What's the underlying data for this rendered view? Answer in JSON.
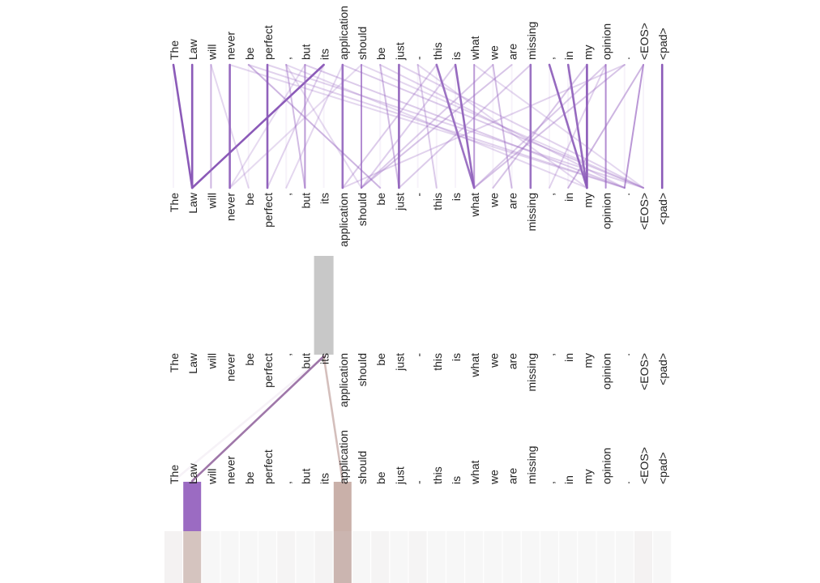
{
  "tokens": [
    "The",
    "Law",
    "will",
    "never",
    "be",
    "perfect",
    ",",
    "but",
    "its",
    "application",
    "should",
    "be",
    "just",
    "-",
    "this",
    "is",
    "what",
    "we",
    "are",
    "missing",
    ",",
    "in",
    "my",
    "opinion",
    ".",
    "<EOS>",
    "<pad>"
  ],
  "colors": {
    "attention": "#9c6bc4",
    "attention_strong": "#8b5ab8",
    "highlight_gray": "#c8c8c8",
    "highlight_purple": "#9b6bc2",
    "highlight_rose": "#c9b0a9",
    "line_purple_mauve": "#8e5f9a",
    "line_rose": "#b89590"
  },
  "overview": {
    "attention_links": [
      {
        "from": 0,
        "to": 1,
        "weight": 0.85
      },
      {
        "from": 1,
        "to": 1,
        "weight": 0.9
      },
      {
        "from": 8,
        "to": 1,
        "weight": 0.9
      },
      {
        "from": 2,
        "to": 2,
        "weight": 0.3
      },
      {
        "from": 3,
        "to": 3,
        "weight": 0.75
      },
      {
        "from": 4,
        "to": 11,
        "weight": 0.35
      },
      {
        "from": 5,
        "to": 5,
        "weight": 0.8
      },
      {
        "from": 7,
        "to": 7,
        "weight": 0.5
      },
      {
        "from": 6,
        "to": 7,
        "weight": 0.3
      },
      {
        "from": 9,
        "to": 9,
        "weight": 0.7
      },
      {
        "from": 10,
        "to": 10,
        "weight": 0.6
      },
      {
        "from": 11,
        "to": 12,
        "weight": 0.3
      },
      {
        "from": 12,
        "to": 12,
        "weight": 0.75
      },
      {
        "from": 14,
        "to": 16,
        "weight": 0.7
      },
      {
        "from": 15,
        "to": 16,
        "weight": 0.75
      },
      {
        "from": 16,
        "to": 16,
        "weight": 0.5
      },
      {
        "from": 17,
        "to": 18,
        "weight": 0.3
      },
      {
        "from": 19,
        "to": 19,
        "weight": 0.7
      },
      {
        "from": 20,
        "to": 22,
        "weight": 0.75
      },
      {
        "from": 21,
        "to": 22,
        "weight": 0.75
      },
      {
        "from": 22,
        "to": 22,
        "weight": 0.85
      },
      {
        "from": 23,
        "to": 23,
        "weight": 0.6
      },
      {
        "from": 25,
        "to": 24,
        "weight": 0.55
      },
      {
        "from": 26,
        "to": 26,
        "weight": 0.85
      },
      {
        "from": 4,
        "to": 24,
        "weight": 0.15
      },
      {
        "from": 5,
        "to": 25,
        "weight": 0.15
      },
      {
        "from": 7,
        "to": 24,
        "weight": 0.2
      },
      {
        "from": 9,
        "to": 25,
        "weight": 0.2
      },
      {
        "from": 12,
        "to": 25,
        "weight": 0.15
      },
      {
        "from": 3,
        "to": 24,
        "weight": 0.12
      },
      {
        "from": 11,
        "to": 24,
        "weight": 0.15
      },
      {
        "from": 16,
        "to": 25,
        "weight": 0.12
      },
      {
        "from": 6,
        "to": 22,
        "weight": 0.12
      },
      {
        "from": 10,
        "to": 25,
        "weight": 0.12
      },
      {
        "from": 13,
        "to": 22,
        "weight": 0.12
      },
      {
        "from": 24,
        "to": 16,
        "weight": 0.25
      },
      {
        "from": 23,
        "to": 16,
        "weight": 0.2
      },
      {
        "from": 22,
        "to": 17,
        "weight": 0.25
      },
      {
        "from": 18,
        "to": 10,
        "weight": 0.25
      },
      {
        "from": 17,
        "to": 10,
        "weight": 0.2
      },
      {
        "from": 19,
        "to": 12,
        "weight": 0.2
      },
      {
        "from": 14,
        "to": 9,
        "weight": 0.2
      },
      {
        "from": 15,
        "to": 10,
        "weight": 0.18
      },
      {
        "from": 24,
        "to": 9,
        "weight": 0.15
      },
      {
        "from": 25,
        "to": 21,
        "weight": 0.35
      },
      {
        "from": 23,
        "to": 20,
        "weight": 0.15
      },
      {
        "from": 13,
        "to": 14,
        "weight": 0.2
      },
      {
        "from": 2,
        "to": 4,
        "weight": 0.12
      },
      {
        "from": 8,
        "to": 5,
        "weight": 0.15
      },
      {
        "from": 9,
        "to": 6,
        "weight": 0.12
      },
      {
        "from": 10,
        "to": 3,
        "weight": 0.1
      },
      {
        "from": 6,
        "to": 10,
        "weight": 0.1
      },
      {
        "from": 7,
        "to": 3,
        "weight": 0.1
      }
    ]
  },
  "detail": {
    "selected_token_index": 8,
    "links": [
      {
        "to": 1,
        "weight": 0.85,
        "color": "line_purple_mauve"
      },
      {
        "to": 9,
        "weight": 0.6,
        "color": "line_rose"
      },
      {
        "to": 0,
        "weight": 0.05,
        "color": "line_purple_mauve"
      }
    ],
    "target_highlights": [
      {
        "index": 1,
        "value": 0.9,
        "color": "highlight_purple"
      },
      {
        "index": 9,
        "value": 0.35,
        "color": "highlight_rose"
      }
    ],
    "value_bars": [
      {
        "index": 0,
        "value": 0.05
      },
      {
        "index": 1,
        "value": 0.55
      },
      {
        "index": 6,
        "value": 0.03
      },
      {
        "index": 8,
        "value": 0.04
      },
      {
        "index": 9,
        "value": 0.7
      },
      {
        "index": 11,
        "value": 0.03
      },
      {
        "index": 13,
        "value": 0.03
      },
      {
        "index": 25,
        "value": 0.05
      }
    ]
  }
}
